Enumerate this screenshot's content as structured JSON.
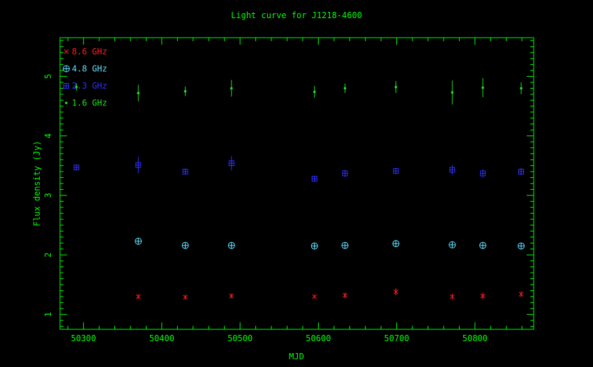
{
  "chart_data": {
    "type": "scatter",
    "title": "Light curve for J1218-4600",
    "xlabel": "MJD",
    "ylabel": "Flux density (Jy)",
    "xlim": [
      50270,
      50875
    ],
    "ylim": [
      0.75,
      5.65
    ],
    "xticks": [
      50300,
      50400,
      50500,
      50600,
      50700,
      50800
    ],
    "yticks": [
      1,
      2,
      3,
      4,
      5
    ],
    "grid": false,
    "legend_position": "top-left",
    "colors": {
      "axis": "#00ff00",
      "title": "#00ff00"
    },
    "series": [
      {
        "name": "8.6 GHz",
        "marker": "x",
        "color": "#ff2020",
        "x": [
          50370,
          50430,
          50489,
          50595,
          50634,
          50699,
          50771,
          50810,
          50859
        ],
        "y": [
          1.3,
          1.29,
          1.31,
          1.3,
          1.32,
          1.38,
          1.3,
          1.31,
          1.34
        ],
        "err": [
          0.04,
          0.04,
          0.04,
          0.03,
          0.05,
          0.06,
          0.05,
          0.06,
          0.05
        ]
      },
      {
        "name": "4.8 GHz",
        "marker": "circle-plus",
        "color": "#60e0ff",
        "x": [
          50370,
          50430,
          50489,
          50595,
          50634,
          50699,
          50771,
          50810,
          50859
        ],
        "y": [
          2.23,
          2.16,
          2.16,
          2.15,
          2.16,
          2.19,
          2.17,
          2.16,
          2.15
        ],
        "err": [
          0.03,
          0.03,
          0.03,
          0.03,
          0.03,
          0.03,
          0.04,
          0.05,
          0.04
        ]
      },
      {
        "name": "2.3 GHz",
        "marker": "square-plus",
        "color": "#3030ff",
        "x": [
          50291,
          50370,
          50430,
          50489,
          50595,
          50634,
          50699,
          50771,
          50810,
          50859
        ],
        "y": [
          3.47,
          3.51,
          3.4,
          3.54,
          3.28,
          3.37,
          3.41,
          3.43,
          3.37,
          3.4
        ],
        "err": [
          0.04,
          0.14,
          0.05,
          0.12,
          0.05,
          0.06,
          0.05,
          0.08,
          0.07,
          0.06
        ]
      },
      {
        "name": "1.6 GHz",
        "marker": "dot",
        "color": "#20e020",
        "x": [
          50291,
          50370,
          50430,
          50489,
          50595,
          50634,
          50699,
          50771,
          50810,
          50859
        ],
        "y": [
          4.82,
          4.72,
          4.75,
          4.8,
          4.74,
          4.8,
          4.82,
          4.73,
          4.81,
          4.8
        ],
        "err": [
          0.06,
          0.14,
          0.08,
          0.14,
          0.1,
          0.08,
          0.1,
          0.2,
          0.16,
          0.1
        ]
      }
    ]
  }
}
